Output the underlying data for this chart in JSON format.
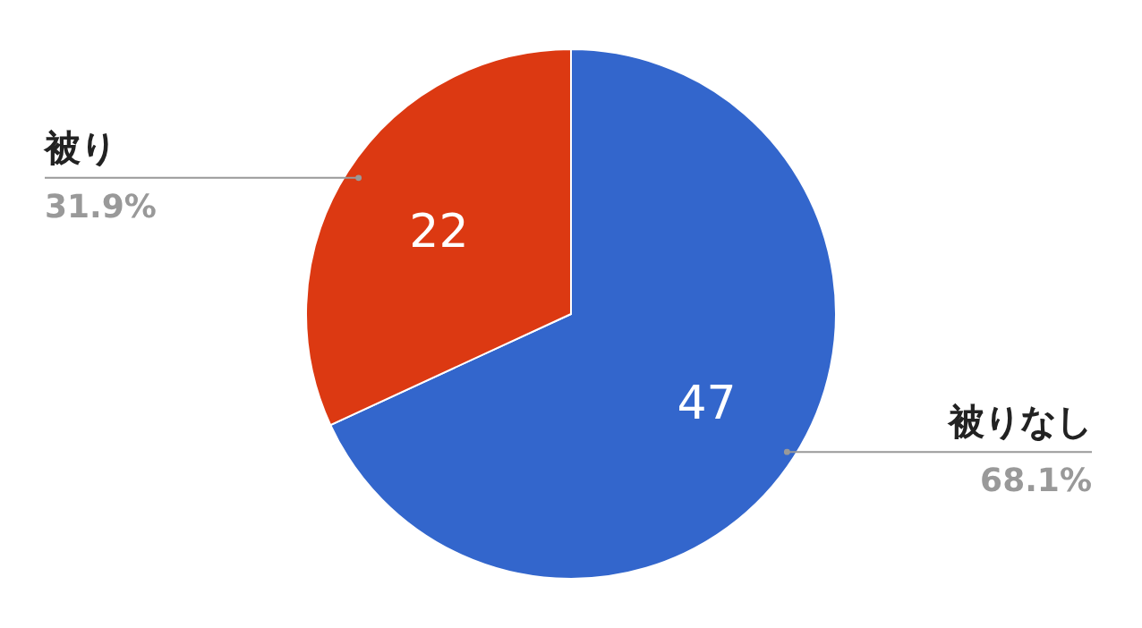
{
  "chart_data": {
    "type": "pie",
    "categories": [
      "被りなし",
      "被り"
    ],
    "values": [
      47,
      22
    ],
    "colors": [
      "#3366cc",
      "#dc3912"
    ],
    "data_labels": true,
    "annotations": [
      "68.1%",
      "31.9%"
    ]
  }
}
